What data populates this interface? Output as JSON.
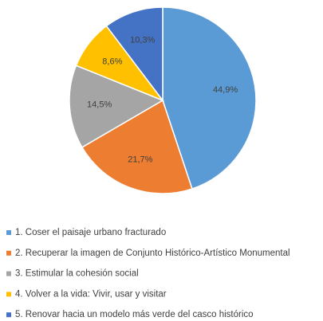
{
  "chart_data": {
    "type": "pie",
    "categories": [
      "1. Coser el paisaje urbano fracturado",
      "2. Recuperar la imagen de Conjunto Histórico-Artístico Monumental",
      "3. Estimular la cohesión social",
      "4. Volver a la vida: Vivir, usar y visitar",
      "5. Renovar hacia un modelo más verde del casco histórico"
    ],
    "values": [
      44.9,
      21.7,
      14.5,
      8.6,
      10.3
    ],
    "value_labels": [
      "44,9%",
      "21,7%",
      "14,5%",
      "8,6%",
      "10,3%"
    ],
    "colors": [
      "#5b9bd5",
      "#ed7d31",
      "#a5a5a5",
      "#ffc000",
      "#4472c4"
    ],
    "legend": "bottom"
  }
}
